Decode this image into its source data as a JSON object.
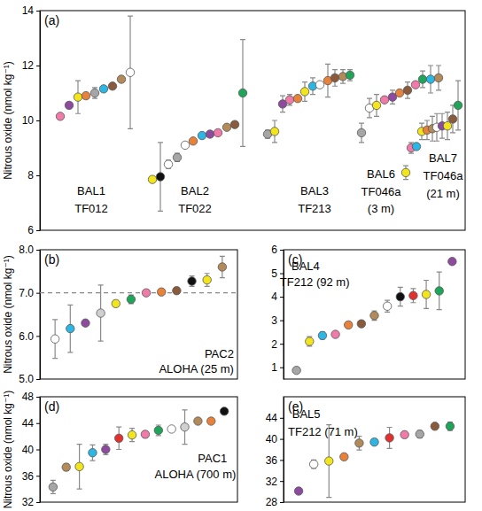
{
  "chart_data": [
    {
      "type": "scatter",
      "title": "(a)",
      "y_label": "Nitrous oxide (nmol kg⁻¹)",
      "marker": "circle",
      "tick_labels": "y",
      "xlim": [
        0,
        48
      ],
      "ylim": [
        6,
        14
      ],
      "yticks": [
        6,
        8,
        10,
        12,
        14
      ],
      "series": [
        {
          "x": [
            2.3,
            3.3,
            4.3,
            5.2,
            6.2,
            7.2,
            8.2,
            9.2,
            10.2
          ],
          "values": [
            10.15,
            10.55,
            10.85,
            10.9,
            11.0,
            11.15,
            11.25,
            11.5,
            11.75
          ],
          "errors": [
            null,
            null,
            0.6,
            null,
            0.2,
            null,
            null,
            null,
            2.05
          ],
          "colors": [
            "#f07aa8",
            "#8e4a9e",
            "#f2e51b",
            "#e8823a",
            "#a6a6a6",
            "#2bb6e3",
            "#8a5a3c",
            "#b38a5a",
            "#ffffff"
          ]
        },
        {
          "x": [
            12.7,
            13.6,
            14.5,
            15.5,
            16.4,
            17.3,
            18.3,
            19.2,
            20.1,
            21.1,
            22.0,
            22.9
          ],
          "values": [
            7.85,
            7.95,
            8.4,
            8.65,
            9.1,
            9.25,
            9.45,
            9.5,
            9.55,
            9.75,
            9.85,
            11.0
          ],
          "errors": [
            null,
            1.25,
            0.15,
            0.15,
            0.1,
            null,
            null,
            null,
            null,
            null,
            null,
            1.95
          ],
          "colors": [
            "#f2e51b",
            "#111111",
            "#ffffff",
            "#a6a6a6",
            "#ffffff",
            "#e8823a",
            "#2bb6e3",
            "#8e4a9e",
            "#f07aa8",
            "#b38a5a",
            "#8a5a3c",
            "#1fa55a"
          ]
        },
        {
          "x": [
            25.7,
            26.5,
            27.4,
            28.2,
            29.1,
            29.9,
            30.8,
            31.6,
            32.5,
            33.3,
            34.2,
            35.0
          ],
          "values": [
            9.5,
            9.6,
            10.6,
            10.75,
            10.8,
            11.05,
            11.25,
            11.3,
            11.45,
            11.55,
            11.6,
            11.65
          ],
          "errors": [
            0.15,
            0.4,
            0.3,
            0.2,
            null,
            0.35,
            0.3,
            null,
            0.6,
            0.3,
            0.25,
            0.2
          ],
          "colors": [
            "#a6a6a6",
            "#f2e51b",
            "#8e4a9e",
            "#f07aa8",
            "#e8823a",
            "#f2e51b",
            "#2bb6e3",
            "#ffffff",
            "#e8823a",
            "#8a5a3c",
            "#b38a5a",
            "#1fa55a"
          ]
        },
        {
          "x": [
            36.3,
            37.2,
            38.0,
            38.9,
            39.8,
            40.6,
            41.5,
            42.4,
            43.2,
            44.1,
            45.0
          ],
          "values": [
            9.55,
            10.45,
            10.55,
            10.75,
            10.85,
            11.0,
            11.1,
            11.3,
            11.5,
            11.5,
            11.55
          ],
          "errors": [
            0.35,
            0.35,
            0.4,
            null,
            0.25,
            null,
            0.3,
            null,
            0.3,
            0.5,
            0.45
          ],
          "colors": [
            "#a6a6a6",
            "#ffffff",
            "#f2e51b",
            "#f07aa8",
            "#8e4a9e",
            "#e8823a",
            "#8a5a3c",
            "#f07aa8",
            "#1fa55a",
            "#2bb6e3",
            "#b38a5a"
          ]
        },
        {
          "x": [
            41.3,
            41.9,
            42.5,
            43.1,
            43.7,
            44.3,
            44.8,
            45.4,
            46.0,
            46.6,
            47.2
          ],
          "values": [
            8.1,
            9.0,
            9.05,
            9.6,
            9.65,
            9.7,
            9.75,
            9.8,
            9.8,
            10.05,
            10.55
          ],
          "errors": [
            0.25,
            0.2,
            null,
            0.3,
            0.35,
            0.45,
            0.5,
            0.45,
            0.5,
            0.5,
            0.9
          ],
          "colors": [
            "#f2e51b",
            "#f07aa8",
            "#2bb6e3",
            "#f2e51b",
            "#e8823a",
            "#b38a5a",
            "#ffffff",
            "#8e4a9e",
            "#f2e51b",
            "#8a5a3c",
            "#1fa55a"
          ]
        }
      ],
      "annotations": [
        {
          "text": "BAL1",
          "x": 5.8,
          "y": 7.3
        },
        {
          "text": "TF012",
          "x": 5.8,
          "y": 6.65
        },
        {
          "text": "BAL2",
          "x": 17.5,
          "y": 7.3
        },
        {
          "text": "TF022",
          "x": 17.5,
          "y": 6.65
        },
        {
          "text": "BAL3",
          "x": 31.0,
          "y": 7.3
        },
        {
          "text": "TF213",
          "x": 31.0,
          "y": 6.65
        },
        {
          "text": "BAL6",
          "x": 38.5,
          "y": 7.9
        },
        {
          "text": "TF046a",
          "x": 38.5,
          "y": 7.25
        },
        {
          "text": "(3 m)",
          "x": 38.5,
          "y": 6.65
        },
        {
          "text": "BAL7",
          "x": 45.5,
          "y": 8.5
        },
        {
          "text": "TF046a",
          "x": 45.5,
          "y": 7.85
        },
        {
          "text": "(21 m)",
          "x": 45.5,
          "y": 7.2
        }
      ]
    },
    {
      "type": "scatter",
      "title": "(b)",
      "y_label": "Nitrous oxide (nmol kg⁻¹)",
      "marker": "circle",
      "tick_labels": "y",
      "xlim": [
        0,
        13
      ],
      "ylim": [
        5,
        8
      ],
      "yticks": [
        {
          "value": 5,
          "label": "5.0"
        },
        {
          "value": 6,
          "label": "6.0"
        },
        {
          "value": 7,
          "label": "7.0"
        },
        {
          "value": 8,
          "label": "8.0"
        }
      ],
      "reference_lines": [
        {
          "y": 7,
          "line_style": "dashed"
        }
      ],
      "series": [
        {
          "x": [
            1,
            2,
            3,
            4,
            5,
            6,
            7,
            8,
            9,
            10,
            11,
            12
          ],
          "values": [
            5.93,
            6.17,
            6.3,
            6.53,
            6.75,
            6.85,
            7.0,
            7.02,
            7.05,
            7.27,
            7.3,
            7.6
          ],
          "errors": [
            0.45,
            0.55,
            null,
            0.65,
            0.07,
            0.1,
            null,
            null,
            0.07,
            0.12,
            0.15,
            0.25
          ],
          "colors": [
            "#ffffff",
            "#2bb6e3",
            "#8e4a9e",
            "#d0d0d0",
            "#f2e51b",
            "#1fa55a",
            "#f07aa8",
            "#e8823a",
            "#8a5a3c",
            "#111111",
            "#f2e51b",
            "#b38a5a"
          ]
        }
      ],
      "annotations": [
        {
          "text": "PAC2",
          "x": 11.8,
          "y": 5.5
        },
        {
          "text": "ALOHA (25 m)",
          "x": 10.3,
          "y": 5.15
        }
      ]
    },
    {
      "type": "scatter",
      "title": "(c)",
      "marker": "circle",
      "tick_labels": "y",
      "xlim": [
        0,
        14
      ],
      "ylim": [
        0.5,
        6
      ],
      "yticks": [
        1,
        2,
        3,
        4,
        5,
        6
      ],
      "series": [
        {
          "x": [
            1,
            2,
            3,
            4,
            5,
            6,
            7,
            8,
            9,
            10,
            11,
            12,
            13
          ],
          "values": [
            0.87,
            2.1,
            2.35,
            2.4,
            2.8,
            2.85,
            3.2,
            3.6,
            4.0,
            4.05,
            4.1,
            4.25,
            5.5
          ],
          "errors": [
            0.05,
            0.2,
            0.15,
            null,
            null,
            0.1,
            0.2,
            0.25,
            0.4,
            0.3,
            0.6,
            0.8,
            null
          ],
          "colors": [
            "#a6a6a6",
            "#f2e51b",
            "#2bb6e3",
            "#f07aa8",
            "#e8823a",
            "#8a5a3c",
            "#b38a5a",
            "#ffffff",
            "#111111",
            "#e0312f",
            "#f2e51b",
            "#1fa55a",
            "#8e4a9e"
          ]
        }
      ],
      "annotations": [
        {
          "text": "BAL4",
          "x": 1.7,
          "y": 5.13
        },
        {
          "text": "TF212 (92 m)",
          "x": 2.4,
          "y": 4.45
        }
      ]
    },
    {
      "type": "scatter",
      "title": "(d)",
      "y_label": "Nitrous oxide (nmol kg⁻¹)",
      "marker": "circle",
      "tick_labels": "y",
      "xlim": [
        0,
        15
      ],
      "ylim": [
        32,
        48
      ],
      "yticks": [
        32,
        36,
        40,
        44,
        48
      ],
      "series": [
        {
          "x": [
            1,
            2,
            3,
            4,
            5,
            6,
            7,
            8,
            9,
            10,
            11,
            12,
            13,
            14
          ],
          "values": [
            34.3,
            37.3,
            37.4,
            39.5,
            40.0,
            41.7,
            42.2,
            42.3,
            42.9,
            43.1,
            43.4,
            44.3,
            44.3,
            45.8
          ],
          "errors": [
            1.0,
            0.5,
            3.4,
            1.2,
            0.8,
            1.7,
            1.0,
            0.5,
            0.8,
            null,
            2.6,
            null,
            null,
            0.3
          ],
          "colors": [
            "#a6a6a6",
            "#b38a5a",
            "#f2e51b",
            "#2bb6e3",
            "#8e4a9e",
            "#e0312f",
            "#f2e51b",
            "#f07aa8",
            "#1fa55a",
            "#ffffff",
            "#d0d0d0",
            "#b38a5a",
            "#e8823a",
            "#111111"
          ]
        }
      ],
      "annotations": [
        {
          "text": "PAC1",
          "x": 13.1,
          "y": 38.1
        },
        {
          "text": "ALOHA (700 m)",
          "x": 11.8,
          "y": 35.6
        }
      ]
    },
    {
      "type": "scatter",
      "title": "(e)",
      "marker": "circle",
      "tick_labels": "y",
      "xlim": [
        0,
        12
      ],
      "ylim": [
        28,
        48
      ],
      "yticks": [
        28,
        32,
        36,
        40,
        44
      ],
      "series": [
        {
          "x": [
            1,
            2,
            3,
            4,
            5,
            6,
            7,
            8,
            9,
            10,
            11
          ],
          "values": [
            30.1,
            35.2,
            35.8,
            36.6,
            39.2,
            39.4,
            40.2,
            40.8,
            40.9,
            42.4,
            42.4
          ],
          "errors": [
            0.5,
            0.8,
            6.9,
            0.3,
            1.3,
            0.6,
            2.0,
            null,
            0.7,
            null,
            0.8
          ],
          "colors": [
            "#8e4a9e",
            "#ffffff",
            "#f2e51b",
            "#e8823a",
            "#b38a5a",
            "#2bb6e3",
            "#e0312f",
            "#f07aa8",
            "#a6a6a6",
            "#8a5a3c",
            "#1fa55a"
          ]
        }
      ],
      "annotations": [
        {
          "text": "BAL5",
          "x": 1.5,
          "y": 44.0
        },
        {
          "text": "TF212 (71 m)",
          "x": 2.6,
          "y": 40.6
        }
      ]
    }
  ]
}
